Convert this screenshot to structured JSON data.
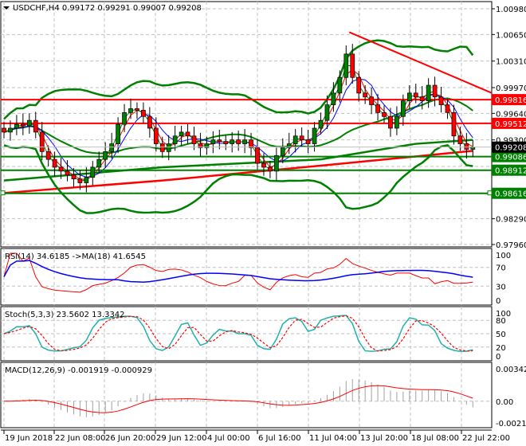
{
  "header": {
    "symbol": "USDCHF,H4",
    "open": "0.99172",
    "high": "0.99291",
    "low": "0.99007",
    "close": "0.99208"
  },
  "colors": {
    "bull": "#008000",
    "bear": "#ff0000",
    "band": "#008000",
    "fast_ma": "#0000ff",
    "mid_ma": "#ff0000",
    "level_resistance": "#ff0000",
    "level_support": "#008000",
    "grid": "#c0c0c0"
  },
  "chart_data": [
    {
      "type": "candlestick",
      "symbol": "USDCHF",
      "timeframe": "H4",
      "closes": [
        0.994,
        0.9945,
        0.995,
        0.9948,
        0.9955,
        0.994,
        0.9915,
        0.9905,
        0.9895,
        0.989,
        0.9885,
        0.988,
        0.9875,
        0.9882,
        0.9895,
        0.9905,
        0.9915,
        0.9925,
        0.995,
        0.9965,
        0.997,
        0.9968,
        0.996,
        0.9945,
        0.9925,
        0.9915,
        0.9925,
        0.9935,
        0.994,
        0.9935,
        0.9925,
        0.992,
        0.9925,
        0.993,
        0.9928,
        0.9925,
        0.993,
        0.9925,
        0.993,
        0.992,
        0.99,
        0.9895,
        0.989,
        0.991,
        0.992,
        0.9925,
        0.9935,
        0.993,
        0.9925,
        0.9945,
        0.9955,
        0.9975,
        0.999,
        1.001,
        1.004,
        1.001,
        0.999,
        0.9985,
        0.9975,
        0.9965,
        0.996,
        0.9945,
        0.996,
        0.998,
        0.999,
        0.9985,
        0.998,
        1.0,
        0.9985,
        0.9975,
        0.9965,
        0.9935,
        0.9925,
        0.9918,
        0.99208
      ],
      "ylim": [
        0.9796,
        1.0098
      ],
      "y_ticks": [
        "1.00980",
        "1.00650",
        "1.00310",
        "0.99970",
        "0.99640",
        "0.99300",
        "0.98290",
        "0.97960"
      ],
      "x_ticks": [
        "19 Jun 2018",
        "22 Jun 08:00",
        "26 Jun 20:00",
        "29 Jun 12:00",
        "4 Jul 00:00",
        "6 Jul 16:00",
        "11 Jul 04:00",
        "13 Jul 20:00",
        "18 Jul 08:00",
        "22 Jul 22:00"
      ],
      "levels": [
        {
          "price": 0.99816,
          "label": "0.99816",
          "kind": "resistance"
        },
        {
          "price": 0.99512,
          "label": "0.99512",
          "kind": "resistance"
        },
        {
          "price": 0.99086,
          "label": "0.99086",
          "kind": "support"
        },
        {
          "price": 0.98912,
          "label": "0.98912",
          "kind": "support"
        },
        {
          "price": 0.98616,
          "label": "0.98616",
          "kind": "support"
        }
      ],
      "current_price": {
        "price": 0.99208,
        "label": "0.99208"
      },
      "trendline": {
        "from": [
          54.5,
          1.0068
        ],
        "to": [
          77,
          0.999
        ]
      },
      "slow_ma_red": [
        [
          0,
          0.9862
        ],
        [
          25,
          0.9878
        ],
        [
          50,
          0.9897
        ],
        [
          74,
          0.9916
        ]
      ],
      "slow_ma_green": [
        [
          0,
          0.9878
        ],
        [
          25,
          0.9895
        ],
        [
          50,
          0.9905
        ],
        [
          65,
          0.9925
        ],
        [
          74,
          0.993
        ]
      ]
    },
    {
      "type": "line",
      "title": "RSI(14) 34.6185  ->MA(18) 41.6545",
      "ylim": [
        0,
        100
      ],
      "y_ticks": [
        "100",
        "70",
        "30",
        "0"
      ]
    },
    {
      "type": "line",
      "title": "Stoch(5,3,3) 23.5602 13.3342",
      "ylim": [
        0,
        100
      ],
      "y_ticks": [
        "100",
        "80",
        "50",
        "20",
        "0"
      ]
    },
    {
      "type": "histogram",
      "title": "MACD(12,26,9) -0.001919 -0.000929",
      "ylim": [
        -0.002173,
        0.003421
      ],
      "y_ticks": [
        "0.003421",
        "0.00",
        "-0.002173"
      ]
    }
  ]
}
